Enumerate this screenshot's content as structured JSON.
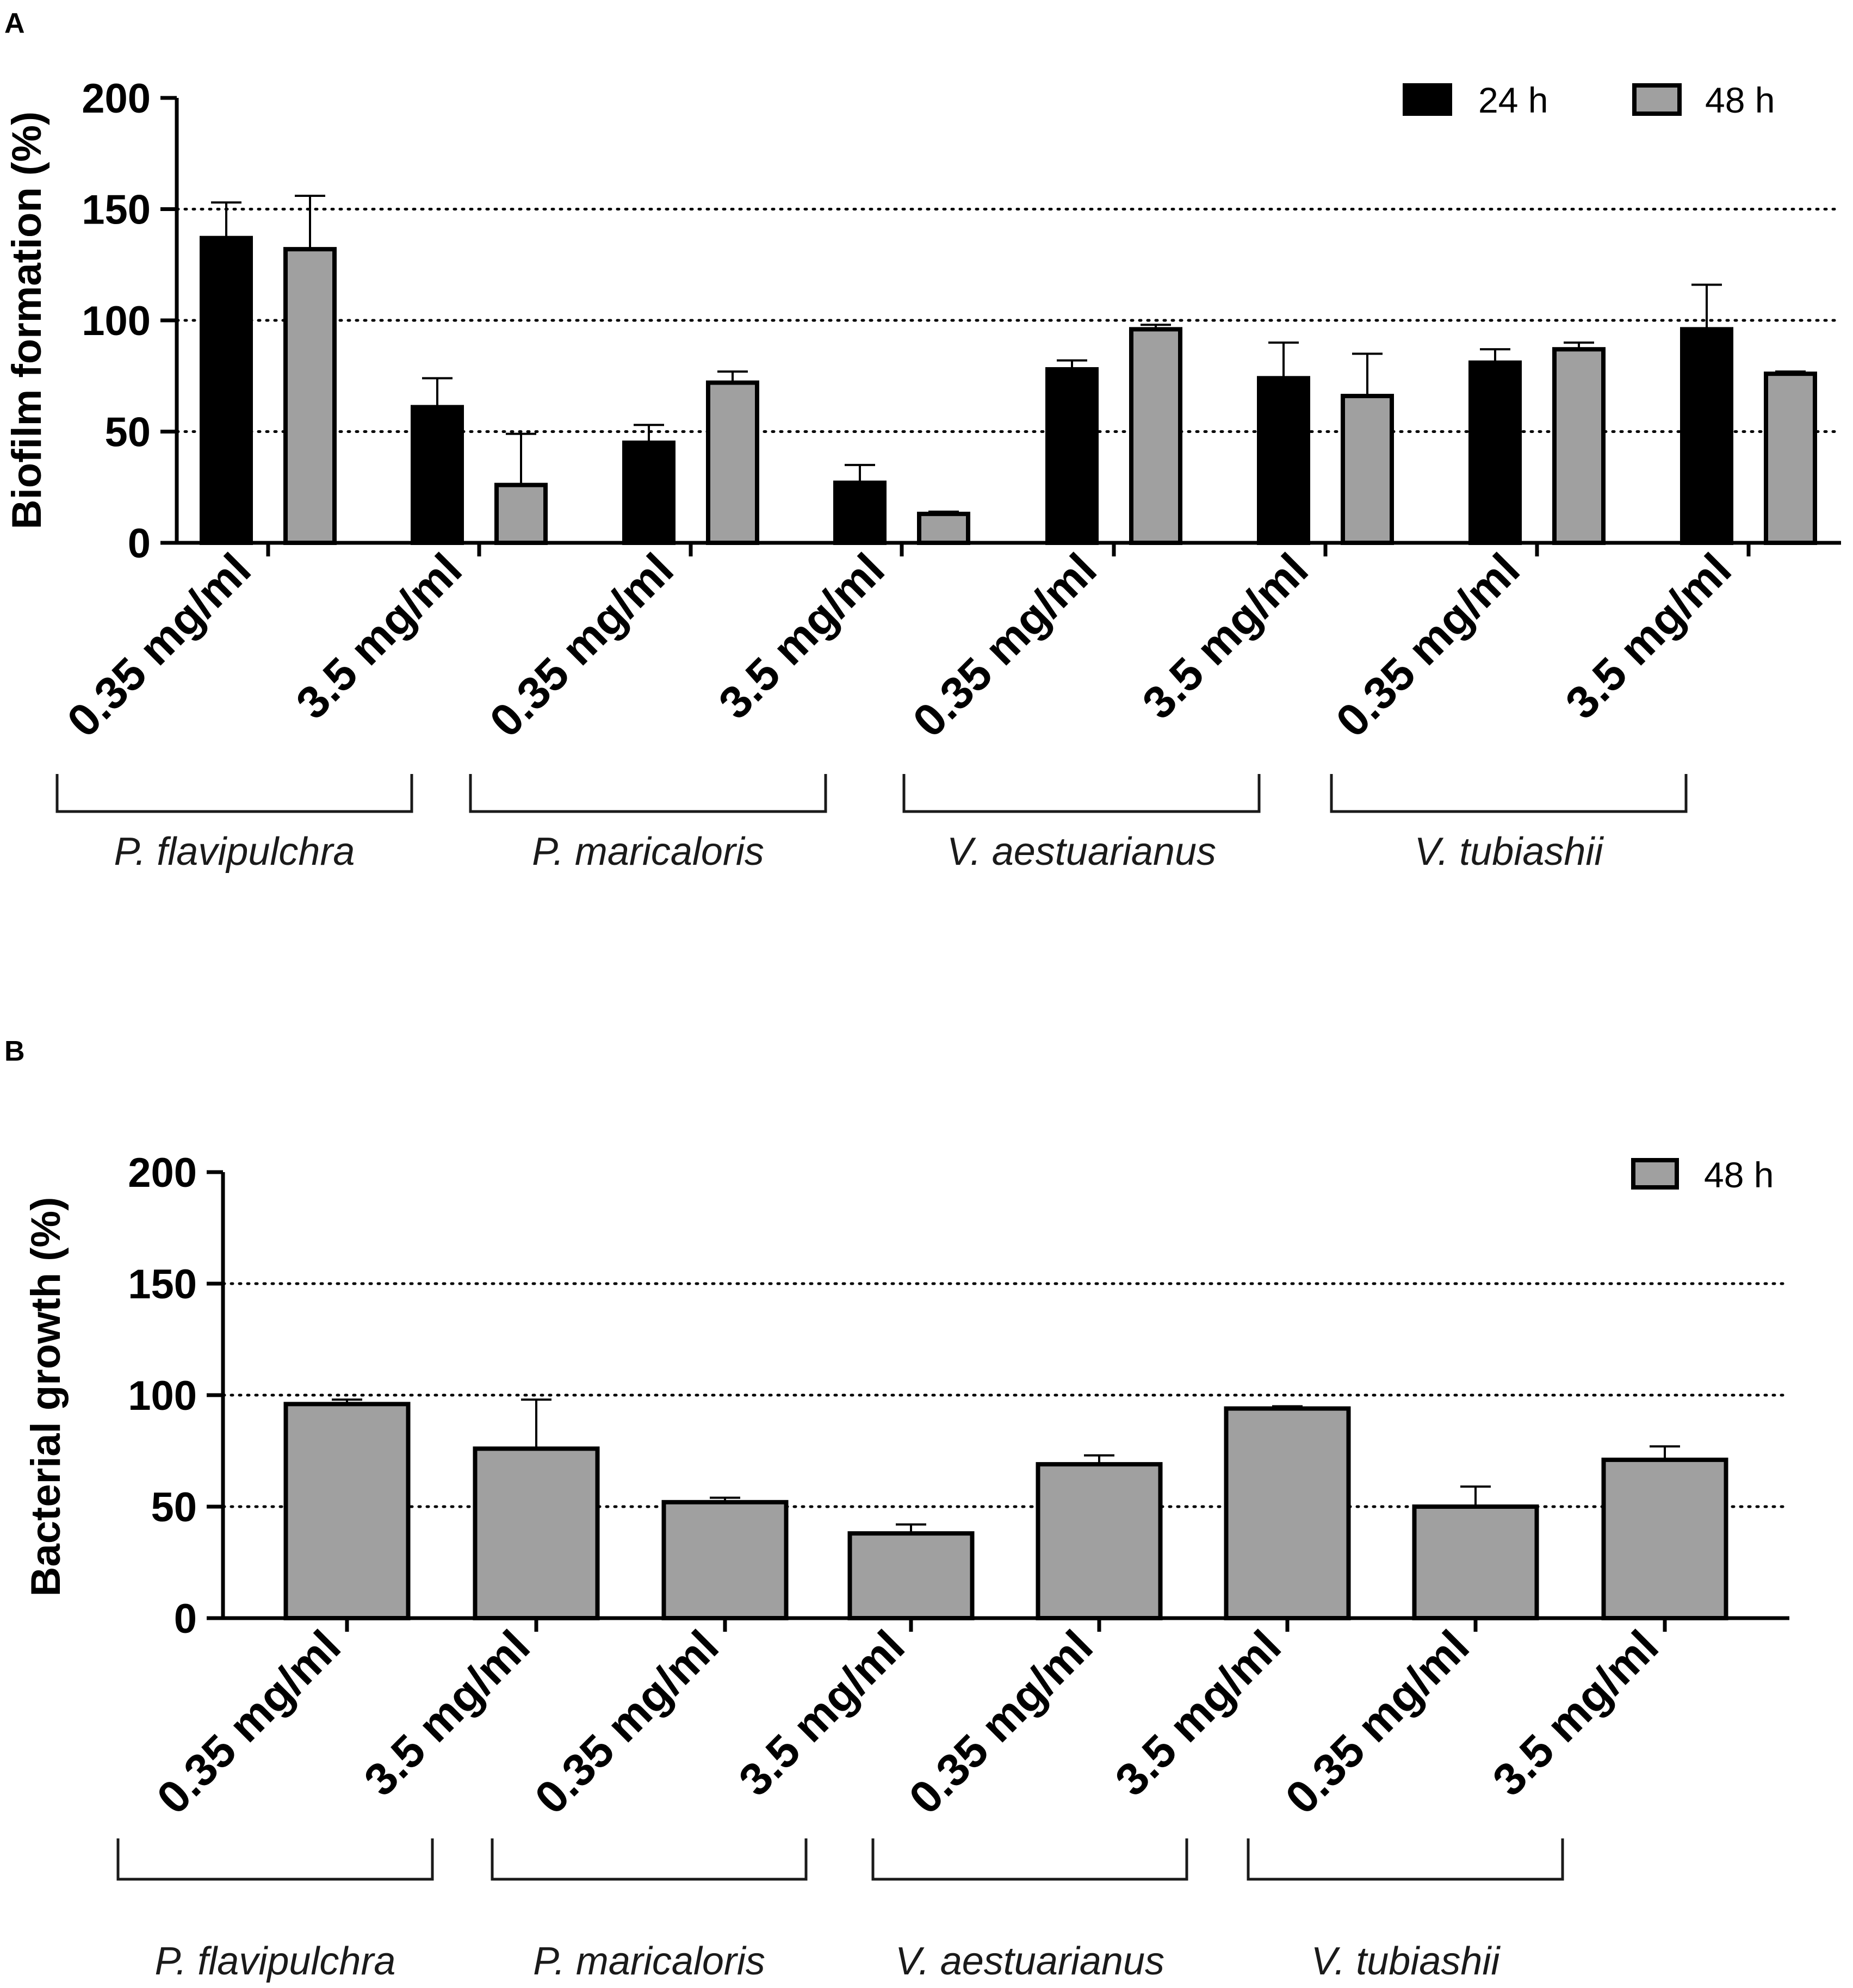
{
  "chart_data": [
    {
      "panel": "A",
      "type": "bar",
      "title": "",
      "ylabel": "Biofilm formation (%)",
      "xlabel": "",
      "ylim": [
        0,
        200
      ],
      "yticks": [
        0,
        50,
        100,
        150,
        200
      ],
      "grid_lines": [
        50,
        100,
        150
      ],
      "legend_position": "top-right",
      "categories": [
        "0.35 mg/ml",
        "3.5 mg/ml",
        "0.35 mg/ml",
        "3.5 mg/ml",
        "0.35 mg/ml",
        "3.5 mg/ml",
        "0.35 mg/ml",
        "3.5 mg/ml"
      ],
      "groups": [
        "P. flavipulchra",
        "P. maricaloris",
        "V. aestuarianus",
        "V. tubiashii"
      ],
      "series": [
        {
          "name": "24 h",
          "color": "#000000",
          "values": [
            137,
            61,
            45,
            27,
            78,
            74,
            81,
            96
          ],
          "errors": [
            16,
            13,
            8,
            8,
            4,
            16,
            6,
            20
          ]
        },
        {
          "name": "48 h",
          "color": "#a0a0a0",
          "values": [
            132,
            26,
            72,
            13,
            96,
            66,
            87,
            76
          ],
          "errors": [
            24,
            23,
            5,
            1,
            2,
            19,
            3,
            1
          ]
        }
      ]
    },
    {
      "panel": "B",
      "type": "bar",
      "title": "",
      "ylabel": "Bacterial growth (%)",
      "xlabel": "",
      "ylim": [
        0,
        200
      ],
      "yticks": [
        0,
        50,
        100,
        150,
        200
      ],
      "grid_lines": [
        50,
        100,
        150
      ],
      "legend_position": "top-right",
      "categories": [
        "0.35 mg/ml",
        "3.5 mg/ml",
        "0.35 mg/ml",
        "3.5 mg/ml",
        "0.35 mg/ml",
        "3.5 mg/ml",
        "0.35 mg/ml",
        "3.5 mg/ml"
      ],
      "groups": [
        "P. flavipulchra",
        "P. maricaloris",
        "V. aestuarianus",
        "V. tubiashii"
      ],
      "series": [
        {
          "name": "48 h",
          "color": "#a0a0a0",
          "values": [
            96,
            76,
            52,
            38,
            69,
            94,
            50,
            71
          ],
          "errors": [
            2,
            22,
            2,
            4,
            4,
            1,
            9,
            6
          ]
        }
      ]
    }
  ]
}
